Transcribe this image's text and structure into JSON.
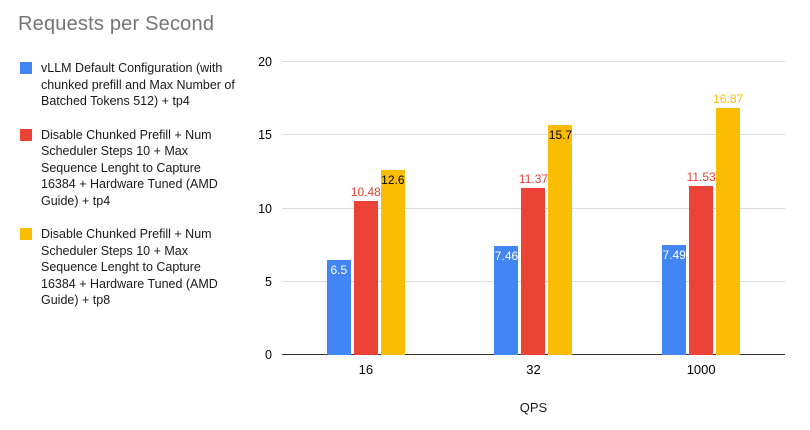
{
  "chart_data": {
    "type": "bar",
    "title": "Requests per Second",
    "xlabel": "QPS",
    "ylabel": "",
    "categories": [
      "16",
      "32",
      "1000"
    ],
    "ylim": [
      0,
      20
    ],
    "yticks": [
      0,
      5,
      10,
      15,
      20
    ],
    "grid": "horizontal",
    "legend_position": "left",
    "series": [
      {
        "name": "vLLM Default Configuration (with chunked prefill and Max Number of Batched Tokens 512) + tp4",
        "color": "#4285f4",
        "values": [
          6.5,
          7.46,
          7.49
        ],
        "labels": [
          "6.5",
          "7.46",
          "7.49"
        ],
        "label_positions": [
          "inside",
          "inside",
          "inside"
        ],
        "label_colors": [
          "#ffffff",
          "#ffffff",
          "#ffffff"
        ]
      },
      {
        "name": "Disable Chunked Prefill + Num Scheduler Steps 10 + Max Sequence Lenght to Capture 16384 + Hardware Tuned (AMD Guide) + tp4",
        "color": "#ea4335",
        "values": [
          10.48,
          11.37,
          11.53
        ],
        "labels": [
          "10.48",
          "11.37",
          "11.53"
        ],
        "label_positions": [
          "outside",
          "outside",
          "outside"
        ],
        "label_colors": [
          "#ea4335",
          "#ea4335",
          "#ea4335"
        ]
      },
      {
        "name": "Disable Chunked Prefill + Num Scheduler Steps 10 + Max Sequence Lenght to Capture 16384 + Hardware Tuned (AMD Guide) + tp8",
        "color": "#fbbc04",
        "values": [
          12.6,
          15.7,
          16.87
        ],
        "labels": [
          "12.6",
          "15.7",
          "16.87"
        ],
        "label_positions": [
          "inside",
          "inside",
          "outside"
        ],
        "label_colors": [
          "#000000",
          "#000000",
          "#fbbc04"
        ]
      }
    ]
  }
}
